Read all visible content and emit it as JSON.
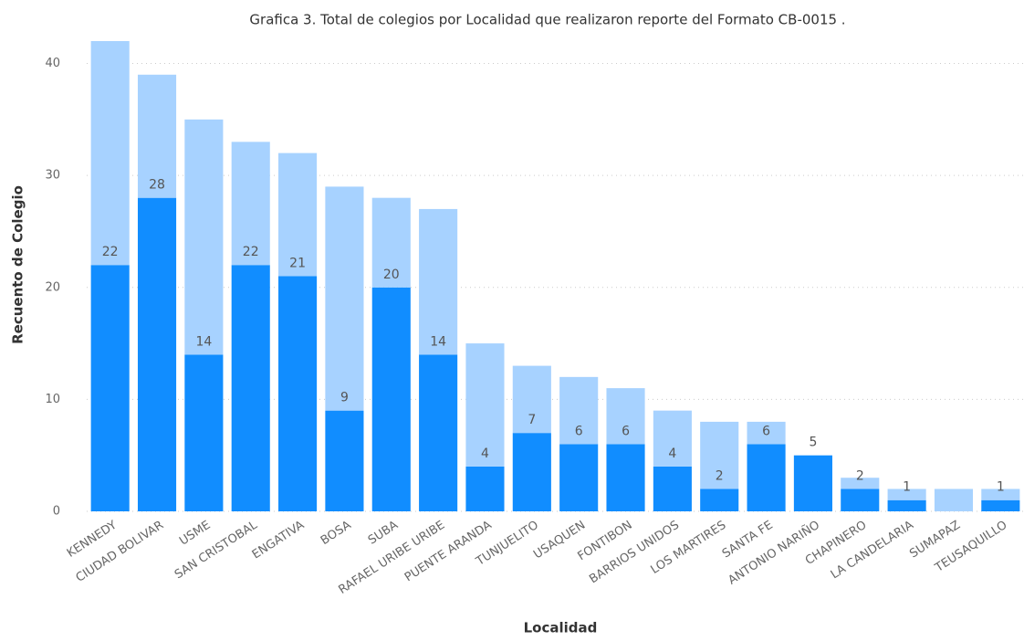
{
  "chart_data": {
    "type": "stacked_bar",
    "title": "Grafica 3. Total de colegios por Localidad que realizaron reporte del Formato CB-0015 .",
    "x_label": "Localidad",
    "y_label": "Recuento de Colegio",
    "categories": [
      "KENNEDY",
      "CIUDAD BOLIVAR",
      "USME",
      "SAN CRISTOBAL",
      "ENGATIVA",
      "BOSA",
      "SUBA",
      "RAFAEL URIBE URIBE",
      "PUENTE ARANDA",
      "TUNJUELITO",
      "USAQUEN",
      "FONTIBON",
      "BARRIOS UNIDOS",
      "LOS MARTIRES",
      "SANTA FE",
      "ANTONIO NARIÑO",
      "CHAPINERO",
      "LA CANDELARIA",
      "SUMAPAZ",
      "TEUSAQUILLO"
    ],
    "series": [
      {
        "color": "#118dff",
        "values": [
          22,
          28,
          14,
          22,
          21,
          9,
          20,
          14,
          4,
          7,
          6,
          6,
          4,
          2,
          6,
          5,
          2,
          1,
          0,
          1
        ],
        "labels": true
      },
      {
        "color": "#a7d2ff",
        "values": [
          20,
          11,
          21,
          11,
          11,
          20,
          8,
          13,
          11,
          6,
          6,
          5,
          5,
          6,
          2,
          0,
          1,
          1,
          2,
          1
        ],
        "labels": false
      }
    ],
    "ylim": [
      0,
      42
    ],
    "yticks": [
      0,
      10,
      20,
      30,
      40
    ],
    "grid": true
  }
}
